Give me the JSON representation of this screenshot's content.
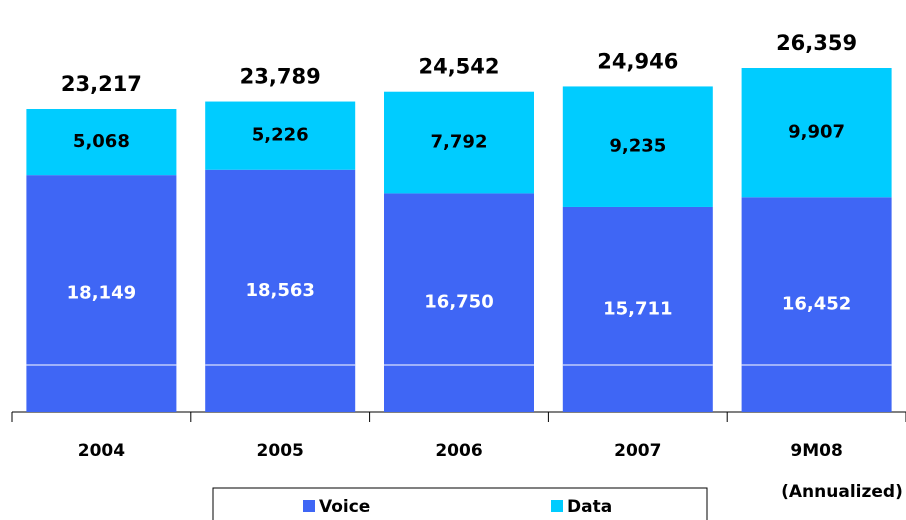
{
  "chart_data": {
    "type": "stacked-bar",
    "categories": [
      "2004",
      "2005",
      "2006",
      "2007",
      "9M08"
    ],
    "series": [
      {
        "name": "Voice",
        "color": "#3f66f5",
        "values": [
          18149,
          18563,
          16750,
          15711,
          16452
        ],
        "value_labels": [
          "18,149",
          "18,563",
          "16,750",
          "15,711",
          "16,452"
        ]
      },
      {
        "name": "Data",
        "color": "#00ccff",
        "values": [
          5068,
          5226,
          7792,
          9235,
          9907
        ],
        "value_labels": [
          "5,068",
          "5,226",
          "7,792",
          "9,235",
          "9,907"
        ]
      }
    ],
    "totals": [
      23217,
      23789,
      24542,
      24946,
      26359
    ],
    "total_labels": [
      "23,217",
      "23,789",
      "24,542",
      "24,946",
      "26,359"
    ],
    "annotation": "(Annualized)",
    "legend": "bottom"
  }
}
